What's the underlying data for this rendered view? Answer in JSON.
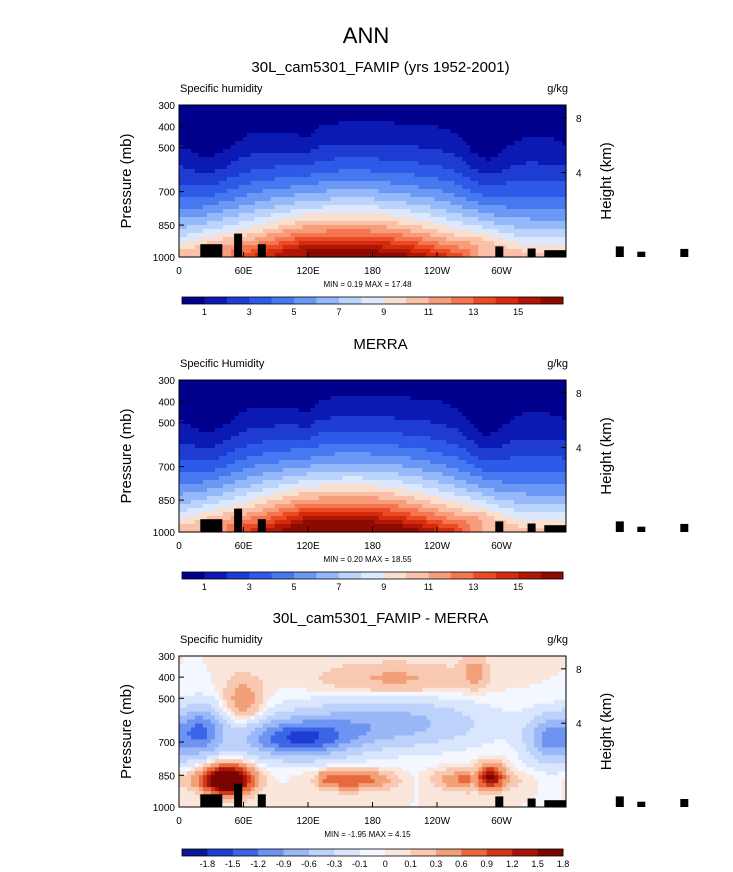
{
  "figure": {
    "title": "ANN"
  },
  "colors": {
    "cb_seq": [
      "#00008c",
      "#0c1ab4",
      "#1e3cd2",
      "#2d5ae6",
      "#4678f0",
      "#6b98f5",
      "#94b8f9",
      "#bad4fc",
      "#dbe8fd",
      "#f8dfd0",
      "#fac1a8",
      "#f89d7c",
      "#f47650",
      "#ea4b24",
      "#d42a0e",
      "#b01606",
      "#8c0a00"
    ],
    "cb_diff": [
      "#0a1a96",
      "#1e3cd2",
      "#3c64e6",
      "#6e94f2",
      "#9ab8f8",
      "#bcd2fb",
      "#dae6fd",
      "#f3f7ff",
      "#fbe6dc",
      "#f8c8b0",
      "#f2a078",
      "#e86a3c",
      "#d03818",
      "#a81408",
      "#7a0400"
    ]
  },
  "chart_data": [
    {
      "type": "heatmap",
      "title": "30L_cam5301_FAMIP (yrs 1952-2001)",
      "left_label": "Specific humidity",
      "right_label": "g/kg",
      "ylabel": "Pressure (mb)",
      "ylabel_right": "Height (km)",
      "x_ticks": [
        "0",
        "60E",
        "120E",
        "180",
        "120W",
        "60W"
      ],
      "y_ticks": [
        "300",
        "400",
        "500",
        "700",
        "850",
        "1000"
      ],
      "right_ticks": [
        "8",
        "4"
      ],
      "min_max": "MIN =   0.19  MAX =  17.48",
      "colorbar": {
        "labels": [
          "1",
          "3",
          "5",
          "7",
          "9",
          "11",
          "13",
          "15"
        ]
      },
      "min": 0.19,
      "max": 17.48
    },
    {
      "type": "heatmap",
      "title": "MERRA",
      "left_label": "Specific Humidity",
      "right_label": "g/kg",
      "ylabel": "Pressure (mb)",
      "ylabel_right": "Height (km)",
      "x_ticks": [
        "0",
        "60E",
        "120E",
        "180",
        "120W",
        "60W"
      ],
      "y_ticks": [
        "300",
        "400",
        "500",
        "700",
        "850",
        "1000"
      ],
      "right_ticks": [
        "8",
        "4"
      ],
      "min_max": "MIN =   0.20  MAX =  18.55",
      "colorbar": {
        "labels": [
          "1",
          "3",
          "5",
          "7",
          "9",
          "11",
          "13",
          "15"
        ]
      },
      "min": 0.2,
      "max": 18.55
    },
    {
      "type": "heatmap",
      "title": "30L_cam5301_FAMIP - MERRA",
      "left_label": "Specific humidity",
      "right_label": "g/kg",
      "ylabel": "Pressure (mb)",
      "ylabel_right": "Height (km)",
      "x_ticks": [
        "0",
        "60E",
        "120E",
        "180",
        "120W",
        "60W"
      ],
      "y_ticks": [
        "300",
        "400",
        "500",
        "700",
        "850",
        "1000"
      ],
      "right_ticks": [
        "8",
        "4"
      ],
      "min_max": "MIN =  -1.95  MAX =   4.15",
      "colorbar": {
        "labels": [
          "-1.8",
          "-1.5",
          "-1.2",
          "-0.9",
          "-0.6",
          "-0.3",
          "-0.1",
          "0",
          "0.1",
          "0.3",
          "0.6",
          "0.9",
          "1.2",
          "1.5",
          "1.8"
        ]
      },
      "min": -1.95,
      "max": 4.15
    }
  ]
}
